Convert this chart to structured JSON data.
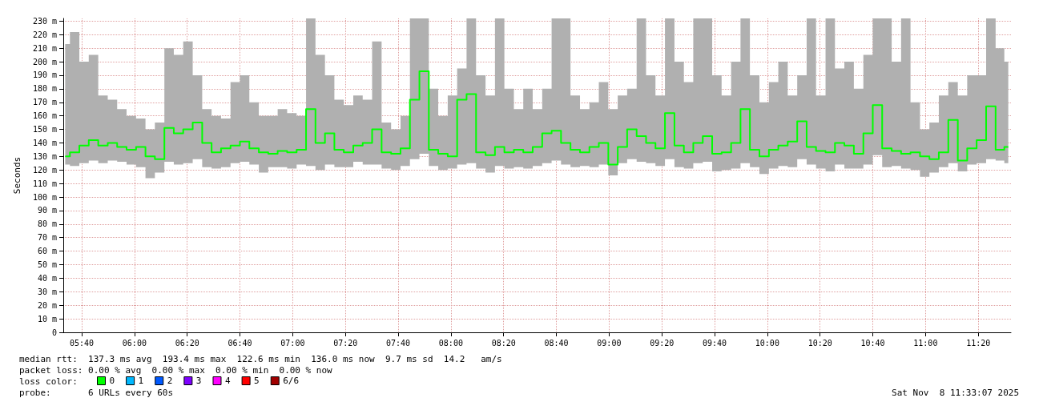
{
  "chart_data": {
    "type": "step",
    "ylabel": "Seconds",
    "legend_title": "loss color:",
    "legend": "bottom left",
    "grid": true,
    "marker": "none",
    "line_style": "solid",
    "xlim": [
      5.55,
      11.54
    ],
    "ylim": [
      0,
      232
    ],
    "xticks": [
      {
        "value": 5.6667,
        "label": "05:40"
      },
      {
        "value": 6,
        "label": "06:00"
      },
      {
        "value": 6.3333,
        "label": "06:20"
      },
      {
        "value": 6.6667,
        "label": "06:40"
      },
      {
        "value": 7,
        "label": "07:00"
      },
      {
        "value": 7.3333,
        "label": "07:20"
      },
      {
        "value": 7.6667,
        "label": "07:40"
      },
      {
        "value": 8,
        "label": "08:00"
      },
      {
        "value": 8.3333,
        "label": "08:20"
      },
      {
        "value": 8.6667,
        "label": "08:40"
      },
      {
        "value": 9,
        "label": "09:00"
      },
      {
        "value": 9.3333,
        "label": "09:20"
      },
      {
        "value": 9.6667,
        "label": "09:40"
      },
      {
        "value": 10,
        "label": "10:00"
      },
      {
        "value": 10.3333,
        "label": "10:20"
      },
      {
        "value": 10.6667,
        "label": "10:40"
      },
      {
        "value": 11,
        "label": "11:00"
      },
      {
        "value": 11.3333,
        "label": "11:20"
      }
    ],
    "yticks": [
      0,
      {
        "value": 10,
        "label": "10 m"
      },
      {
        "value": 20,
        "label": "20 m"
      },
      {
        "value": 30,
        "label": "30 m"
      },
      {
        "value": 40,
        "label": "40 m"
      },
      {
        "value": 50,
        "label": "50 m"
      },
      {
        "value": 60,
        "label": "60 m"
      },
      {
        "value": 70,
        "label": "70 m"
      },
      {
        "value": 80,
        "label": "80 m"
      },
      {
        "value": 90,
        "label": "90 m"
      },
      {
        "value": 100,
        "label": "100 m"
      },
      {
        "value": 110,
        "label": "110 m"
      },
      {
        "value": 120,
        "label": "120 m"
      },
      {
        "value": 130,
        "label": "130 m"
      },
      {
        "value": 140,
        "label": "140 m"
      },
      {
        "value": 150,
        "label": "150 m"
      },
      {
        "value": 160,
        "label": "160 m"
      },
      {
        "value": 170,
        "label": "170 m"
      },
      {
        "value": 180,
        "label": "180 m"
      },
      {
        "value": 190,
        "label": "190 m"
      },
      {
        "value": 200,
        "label": "200 m"
      },
      {
        "value": 210,
        "label": "210 m"
      },
      {
        "value": 220,
        "label": "220 m"
      },
      {
        "value": 230,
        "label": "230 m"
      }
    ],
    "x": [
      5.562,
      5.622,
      5.681,
      5.741,
      5.801,
      5.861,
      5.92,
      5.98,
      6.04,
      6.099,
      6.159,
      6.219,
      6.278,
      6.338,
      6.398,
      6.458,
      6.517,
      6.577,
      6.637,
      6.696,
      6.756,
      6.816,
      6.875,
      6.935,
      6.995,
      7.055,
      7.114,
      7.174,
      7.234,
      7.293,
      7.353,
      7.413,
      7.472,
      7.532,
      7.592,
      7.652,
      7.711,
      7.771,
      7.831,
      7.89,
      7.95,
      8.01,
      8.069,
      8.129,
      8.189,
      8.249,
      8.308,
      8.368,
      8.428,
      8.487,
      8.547,
      8.607,
      8.666,
      8.726,
      8.786,
      8.846,
      8.905,
      8.965,
      9.025,
      9.084,
      9.144,
      9.204,
      9.263,
      9.323,
      9.383,
      9.443,
      9.502,
      9.562,
      9.622,
      9.681,
      9.741,
      9.801,
      9.86,
      9.92,
      9.98,
      10.04,
      10.099,
      10.159,
      10.219,
      10.278,
      10.338,
      10.398,
      10.457,
      10.517,
      10.577,
      10.637,
      10.696,
      10.756,
      10.816,
      10.875,
      10.935,
      10.995,
      11.054,
      11.114,
      11.174,
      11.234,
      11.293,
      11.353,
      11.413,
      11.473,
      11.523
    ],
    "series": [
      {
        "name": "0",
        "color": "#00ff00",
        "values": [
          130,
          133,
          138,
          142,
          138,
          140,
          137,
          135,
          137,
          130,
          128,
          151,
          147,
          150,
          155,
          140,
          133,
          136,
          138,
          141,
          136,
          133,
          132,
          134,
          133,
          135,
          165,
          140,
          147,
          135,
          133,
          138,
          140,
          150,
          133,
          132,
          136,
          172,
          193,
          135,
          132,
          130,
          172,
          176,
          133,
          131,
          137,
          133,
          135,
          133,
          137,
          147,
          149,
          140,
          135,
          133,
          137,
          140,
          124,
          137,
          150,
          145,
          140,
          136,
          162,
          138,
          133,
          140,
          145,
          132,
          133,
          140,
          165,
          135,
          130,
          135,
          138,
          141,
          156,
          137,
          134,
          133,
          140,
          138,
          132,
          147,
          168,
          136,
          134,
          132,
          133,
          130,
          128,
          133,
          157,
          127,
          136,
          142,
          167,
          135,
          137
        ],
        "lower": [
          124,
          123,
          125,
          127,
          125,
          127,
          126,
          124,
          122,
          114,
          118,
          126,
          124,
          125,
          128,
          122,
          121,
          122,
          125,
          126,
          124,
          118,
          122,
          122,
          121,
          124,
          123,
          120,
          124,
          122,
          122,
          126,
          124,
          124,
          121,
          120,
          123,
          128,
          132,
          123,
          120,
          121,
          124,
          125,
          121,
          118,
          123,
          121,
          122,
          121,
          123,
          125,
          127,
          124,
          122,
          123,
          122,
          124,
          116,
          125,
          128,
          126,
          125,
          123,
          128,
          122,
          121,
          125,
          126,
          119,
          120,
          121,
          125,
          122,
          117,
          121,
          123,
          122,
          128,
          124,
          121,
          119,
          124,
          121,
          121,
          124,
          131,
          122,
          123,
          121,
          120,
          115,
          118,
          122,
          125,
          119,
          124,
          125,
          128,
          127,
          125
        ],
        "upper": [
          213,
          222,
          200,
          205,
          175,
          172,
          165,
          160,
          158,
          150,
          155,
          210,
          205,
          215,
          190,
          165,
          160,
          158,
          185,
          190,
          170,
          160,
          160,
          165,
          162,
          160,
          232,
          205,
          190,
          172,
          168,
          175,
          172,
          215,
          155,
          150,
          160,
          232,
          232,
          180,
          160,
          175,
          195,
          232,
          190,
          175,
          232,
          180,
          165,
          180,
          165,
          180,
          232,
          232,
          175,
          165,
          170,
          185,
          165,
          175,
          180,
          232,
          190,
          175,
          232,
          200,
          185,
          232,
          232,
          190,
          175,
          200,
          232,
          190,
          170,
          185,
          200,
          175,
          190,
          232,
          175,
          232,
          195,
          200,
          180,
          205,
          232,
          232,
          200,
          232,
          170,
          150,
          155,
          175,
          185,
          175,
          190,
          190,
          232,
          210,
          200
        ]
      },
      {
        "name": "1",
        "color": "#00b8ff",
        "values": [
          null,
          null,
          null,
          null,
          null,
          null,
          null,
          null,
          null,
          null,
          null,
          null,
          null,
          null,
          null,
          null,
          null,
          null,
          null,
          null,
          null,
          null,
          null,
          null,
          null,
          null,
          null,
          null,
          null,
          null,
          null,
          null,
          null,
          null,
          null,
          null,
          null,
          null,
          null,
          null,
          null,
          null,
          null,
          null,
          null,
          null,
          null,
          null,
          null,
          null,
          null,
          null,
          null,
          null,
          null,
          null,
          null,
          null,
          null,
          null,
          null,
          null,
          null,
          null,
          null,
          null,
          null,
          null,
          null,
          null,
          null,
          null,
          null,
          null,
          null,
          null,
          null,
          null,
          null,
          null,
          null,
          null,
          null,
          null,
          null,
          null,
          null,
          null,
          null,
          null,
          null,
          null,
          null,
          null,
          null,
          null,
          null,
          null,
          null,
          null,
          null
        ]
      },
      {
        "name": "2",
        "color": "#0059ff",
        "values": [
          null,
          null,
          null,
          null,
          null,
          null,
          null,
          null,
          null,
          null,
          null,
          null,
          null,
          null,
          null,
          null,
          null,
          null,
          null,
          null,
          null,
          null,
          null,
          null,
          null,
          null,
          null,
          null,
          null,
          null,
          null,
          null,
          null,
          null,
          null,
          null,
          null,
          null,
          null,
          null,
          null,
          null,
          null,
          null,
          null,
          null,
          null,
          null,
          null,
          null,
          null,
          null,
          null,
          null,
          null,
          null,
          null,
          null,
          null,
          null,
          null,
          null,
          null,
          null,
          null,
          null,
          null,
          null,
          null,
          null,
          null,
          null,
          null,
          null,
          null,
          null,
          null,
          null,
          null,
          null,
          null,
          null,
          null,
          null,
          null,
          null,
          null,
          null,
          null,
          null,
          null,
          null,
          null,
          null,
          null,
          null,
          null,
          null,
          null,
          null,
          null
        ]
      },
      {
        "name": "3",
        "color": "#7e00ff",
        "values": [
          null,
          null,
          null,
          null,
          null,
          null,
          null,
          null,
          null,
          null,
          null,
          null,
          null,
          null,
          null,
          null,
          null,
          null,
          null,
          null,
          null,
          null,
          null,
          null,
          null,
          null,
          null,
          null,
          null,
          null,
          null,
          null,
          null,
          null,
          null,
          null,
          null,
          null,
          null,
          null,
          null,
          null,
          null,
          null,
          null,
          null,
          null,
          null,
          null,
          null,
          null,
          null,
          null,
          null,
          null,
          null,
          null,
          null,
          null,
          null,
          null,
          null,
          null,
          null,
          null,
          null,
          null,
          null,
          null,
          null,
          null,
          null,
          null,
          null,
          null,
          null,
          null,
          null,
          null,
          null,
          null,
          null,
          null,
          null,
          null,
          null,
          null,
          null,
          null,
          null,
          null,
          null,
          null,
          null,
          null,
          null,
          null,
          null,
          null,
          null,
          null
        ]
      },
      {
        "name": "4",
        "color": "#ff00ff",
        "values": [
          null,
          null,
          null,
          null,
          null,
          null,
          null,
          null,
          null,
          null,
          null,
          null,
          null,
          null,
          null,
          null,
          null,
          null,
          null,
          null,
          null,
          null,
          null,
          null,
          null,
          null,
          null,
          null,
          null,
          null,
          null,
          null,
          null,
          null,
          null,
          null,
          null,
          null,
          null,
          null,
          null,
          null,
          null,
          null,
          null,
          null,
          null,
          null,
          null,
          null,
          null,
          null,
          null,
          null,
          null,
          null,
          null,
          null,
          null,
          null,
          null,
          null,
          null,
          null,
          null,
          null,
          null,
          null,
          null,
          null,
          null,
          null,
          null,
          null,
          null,
          null,
          null,
          null,
          null,
          null,
          null,
          null,
          null,
          null,
          null,
          null,
          null,
          null,
          null,
          null,
          null,
          null,
          null,
          null,
          null,
          null,
          null,
          null,
          null,
          null,
          null
        ]
      },
      {
        "name": "5",
        "color": "#ff0000",
        "values": [
          null,
          null,
          null,
          null,
          null,
          null,
          null,
          null,
          null,
          null,
          null,
          null,
          null,
          null,
          null,
          null,
          null,
          null,
          null,
          null,
          null,
          null,
          null,
          null,
          null,
          null,
          null,
          null,
          null,
          null,
          null,
          null,
          null,
          null,
          null,
          null,
          null,
          null,
          null,
          null,
          null,
          null,
          null,
          null,
          null,
          null,
          null,
          null,
          null,
          null,
          null,
          null,
          null,
          null,
          null,
          null,
          null,
          null,
          null,
          null,
          null,
          null,
          null,
          null,
          null,
          null,
          null,
          null,
          null,
          null,
          null,
          null,
          null,
          null,
          null,
          null,
          null,
          null,
          null,
          null,
          null,
          null,
          null,
          null,
          null,
          null,
          null,
          null,
          null,
          null,
          null,
          null,
          null,
          null,
          null,
          null,
          null,
          null,
          null,
          null,
          null
        ]
      },
      {
        "name": "6/6",
        "color": "#a10000",
        "values": [
          null,
          null,
          null,
          null,
          null,
          null,
          null,
          null,
          null,
          null,
          null,
          null,
          null,
          null,
          null,
          null,
          null,
          null,
          null,
          null,
          null,
          null,
          null,
          null,
          null,
          null,
          null,
          null,
          null,
          null,
          null,
          null,
          null,
          null,
          null,
          null,
          null,
          null,
          null,
          null,
          null,
          null,
          null,
          null,
          null,
          null,
          null,
          null,
          null,
          null,
          null,
          null,
          null,
          null,
          null,
          null,
          null,
          null,
          null,
          null,
          null,
          null,
          null,
          null,
          null,
          null,
          null,
          null,
          null,
          null,
          null,
          null,
          null,
          null,
          null,
          null,
          null,
          null,
          null,
          null,
          null,
          null,
          null,
          null,
          null,
          null,
          null,
          null,
          null,
          null,
          null,
          null,
          null,
          null,
          null,
          null,
          null,
          null,
          null,
          null,
          null
        ]
      }
    ],
    "annotations": [
      "median rtt:  137.3 ms avg  193.4 ms max  122.6 ms min  136.0 ms now  9.7 ms sd  14.2   am/s",
      "packet loss: 0.00 % avg  0.00 % max  0.00 % min  0.00 % now",
      "probe:       6 URLs every 60s",
      "Sat Nov  8 11:33:07 2025"
    ]
  }
}
